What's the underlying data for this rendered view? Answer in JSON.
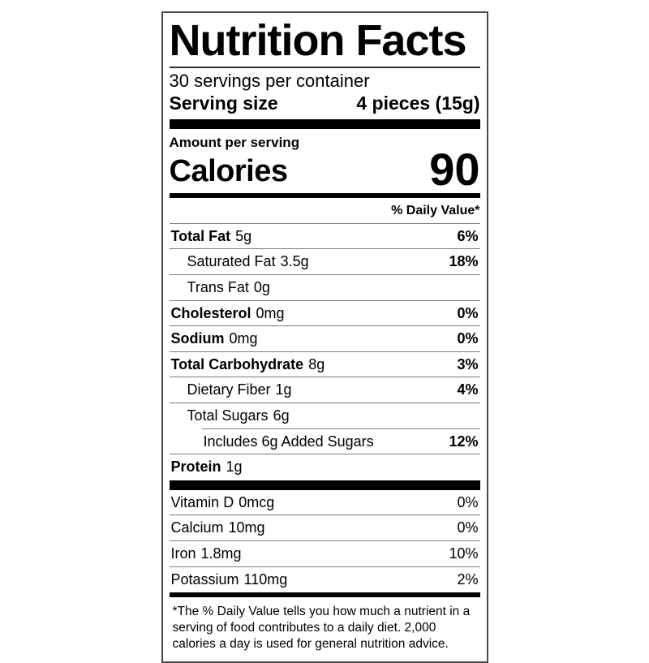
{
  "label": {
    "title": "Nutrition Facts",
    "servings_per_container": "30 servings per container",
    "serving_size_label": "Serving size",
    "serving_size_value": "4 pieces (15g)",
    "amount_per_serving": "Amount per serving",
    "calories_label": "Calories",
    "calories_value": "90",
    "daily_value_header": "% Daily Value*",
    "rows": [
      {
        "name": "Total Fat",
        "amount": "5g",
        "dv": "6%"
      },
      {
        "name": "Saturated Fat",
        "amount": "3.5g",
        "dv": "18%"
      },
      {
        "name": "Trans Fat",
        "amount": "0g",
        "dv": ""
      },
      {
        "name": "Cholesterol",
        "amount": "0mg",
        "dv": "0%"
      },
      {
        "name": "Sodium",
        "amount": "0mg",
        "dv": "0%"
      },
      {
        "name": "Total Carbohydrate",
        "amount": "8g",
        "dv": "3%"
      },
      {
        "name": "Dietary Fiber",
        "amount": "1g",
        "dv": "4%"
      },
      {
        "name": "Total Sugars",
        "amount": "6g",
        "dv": ""
      },
      {
        "name": "Includes 6g Added Sugars",
        "amount": "",
        "dv": "12%"
      },
      {
        "name": "Protein",
        "amount": "1g",
        "dv": ""
      }
    ],
    "micronutrients": [
      {
        "name": "Vitamin D",
        "amount": "0mcg",
        "dv": "0%"
      },
      {
        "name": "Calcium",
        "amount": "10mg",
        "dv": "0%"
      },
      {
        "name": "Iron",
        "amount": "1.8mg",
        "dv": "10%"
      },
      {
        "name": "Potassium",
        "amount": "110mg",
        "dv": "2%"
      }
    ],
    "footnote": "*The % Daily Value tells you how much a nutrient in a serving of food contributes to a daily diet. 2,000 calories a day is used for general nutrition advice."
  },
  "colors": {
    "text": "#000000",
    "background": "#ffffff",
    "border": "#4a4a4a",
    "divider": "#7a7a7a"
  }
}
